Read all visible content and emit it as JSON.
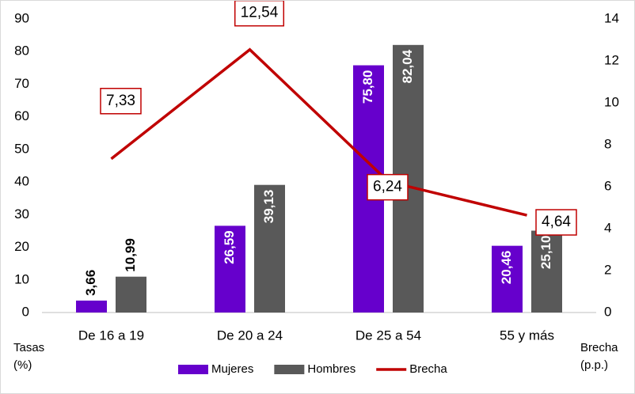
{
  "chart_data": {
    "type": "bar",
    "categories": [
      "De 16 a 19",
      "De 20 a 24",
      "De 25 a 54",
      "55 y más"
    ],
    "y_label": "Tasas (%)",
    "y2_label": "Brecha (p.p.)",
    "ylim": [
      0,
      90
    ],
    "yticks": [
      0,
      10,
      20,
      30,
      40,
      50,
      60,
      70,
      80,
      90
    ],
    "y2lim": [
      0,
      14
    ],
    "y2ticks": [
      0,
      2,
      4,
      6,
      8,
      10,
      12,
      14
    ],
    "series": [
      {
        "name": "Mujeres",
        "type": "bar",
        "color": "#6600cc",
        "values": [
          3.66,
          26.59,
          75.8,
          20.46
        ],
        "value_labels": [
          "3,66",
          "26,59",
          "75,80",
          "20,46"
        ]
      },
      {
        "name": "Hombres",
        "type": "bar",
        "color": "#595959",
        "values": [
          10.99,
          39.13,
          82.04,
          25.1
        ],
        "value_labels": [
          "10,99",
          "39,13",
          "82,04",
          "25,10"
        ]
      },
      {
        "name": "Brecha",
        "type": "line",
        "axis": "y2",
        "color": "#c00000",
        "values": [
          7.33,
          12.54,
          6.24,
          4.64
        ],
        "value_labels": [
          "7,33",
          "12,54",
          "6,24",
          "4,64"
        ]
      }
    ]
  }
}
